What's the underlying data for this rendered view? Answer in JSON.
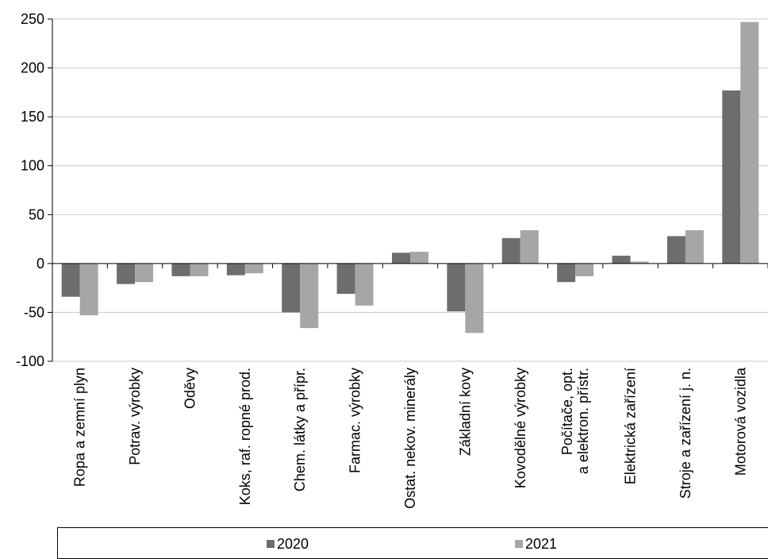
{
  "chart_data": {
    "type": "bar",
    "title": "",
    "subtitle": "",
    "xlabel": "",
    "ylabel": "",
    "ylim": [
      -100,
      250
    ],
    "yticks": [
      -100,
      -50,
      0,
      50,
      100,
      150,
      200,
      250
    ],
    "grid": true,
    "legend_position": "bottom",
    "categories": [
      "Ropa a zemní plyn",
      "Potrav. výrobky",
      "Oděvy",
      "Koks, raf. ropné prod.",
      "Chem. látky a přípr.",
      "Farmac. výrobky",
      "Ostat. nekov. minerály",
      "Základní kovy",
      "Kovodělné výrobky",
      "Počítače, opt.\na elektron. přístr.",
      "Elektrická zařízení",
      "Stroje a zařízení j. n.",
      "Motorová vozidla"
    ],
    "series": [
      {
        "name": "2020",
        "color": "#6d6d6d",
        "values": [
          -34,
          -21,
          -13,
          -12,
          -50,
          -31,
          11,
          -49,
          26,
          -19,
          8,
          28,
          177
        ]
      },
      {
        "name": "2021",
        "color": "#a6a6a6",
        "values": [
          -53,
          -19,
          -13,
          -10,
          -66,
          -43,
          12,
          -71,
          34,
          -13,
          2,
          34,
          247
        ]
      }
    ]
  }
}
